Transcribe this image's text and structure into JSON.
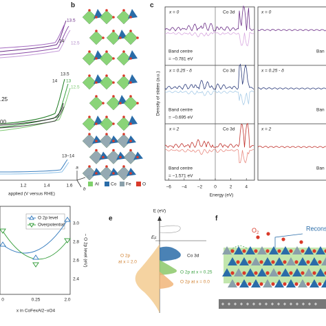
{
  "panel_a": {
    "curve_labels_top": [
      "13.5",
      "14",
      "12.5"
    ],
    "curve_labels_mid": [
      "13.5",
      "14",
      "13",
      "12.5"
    ],
    "curve_label_bottom": "13–14",
    "partial_labels": [
      ".25",
      "00"
    ],
    "x_ticks": [
      "1.2",
      "1.4",
      "1.6"
    ],
    "x_label": "applied (V versus RHE)"
  },
  "panel_b": {
    "letter": "b",
    "axes": [
      "a",
      "c",
      "b"
    ],
    "legend": [
      "Al",
      "Co",
      "Fe",
      "O"
    ]
  },
  "panel_c": {
    "letter": "c",
    "y_label": "Density of states (a.u.)",
    "x_label": "Energy (eV)",
    "x_ticks": [
      "−6",
      "−4",
      "−2",
      "0",
      "2",
      "4"
    ],
    "rows": [
      {
        "composition": "x = 0",
        "orbital": "Co 3d",
        "band": "Band centre",
        "value": "= −0.781 eV"
      },
      {
        "composition": "x = 0.25 - δ",
        "orbital": "Co 3d",
        "band": "Band centre",
        "value": "= −0.695 eV"
      },
      {
        "composition": "x = 2",
        "orbital": "Co 3d",
        "band": "Band centre",
        "value": "= −1.571 eV"
      }
    ],
    "right_rows": [
      {
        "composition": "x = 0",
        "band": "Ban"
      },
      {
        "composition": "x = 0.25 - δ",
        "band": "Ban"
      },
      {
        "composition": "x = 2",
        "band": "Ban"
      }
    ]
  },
  "panel_d": {
    "legend": [
      "O 2p level",
      "Overpotential"
    ],
    "y2_label": "− O 2p level (eV)",
    "y2_ticks": [
      "3.0",
      "2.8",
      "2.6",
      "2.4"
    ],
    "x_ticks": [
      "0",
      "0.25",
      "2.0"
    ],
    "x_label": "x in CoFexAl2−xO4"
  },
  "panel_e": {
    "letter": "e",
    "y_label": "E (eV)",
    "fermi": {
      "main": "E",
      "sub": "F"
    },
    "labels": [
      "Co 3d",
      "O 2p at x = 0.25",
      "O 2p at x = 0.0"
    ],
    "left_label": [
      "O 2p",
      "at x = 2.0"
    ]
  },
  "panel_f": {
    "letter": "f",
    "oxygen": {
      "main": "O",
      "sub": "2"
    },
    "label": "Recons"
  }
}
